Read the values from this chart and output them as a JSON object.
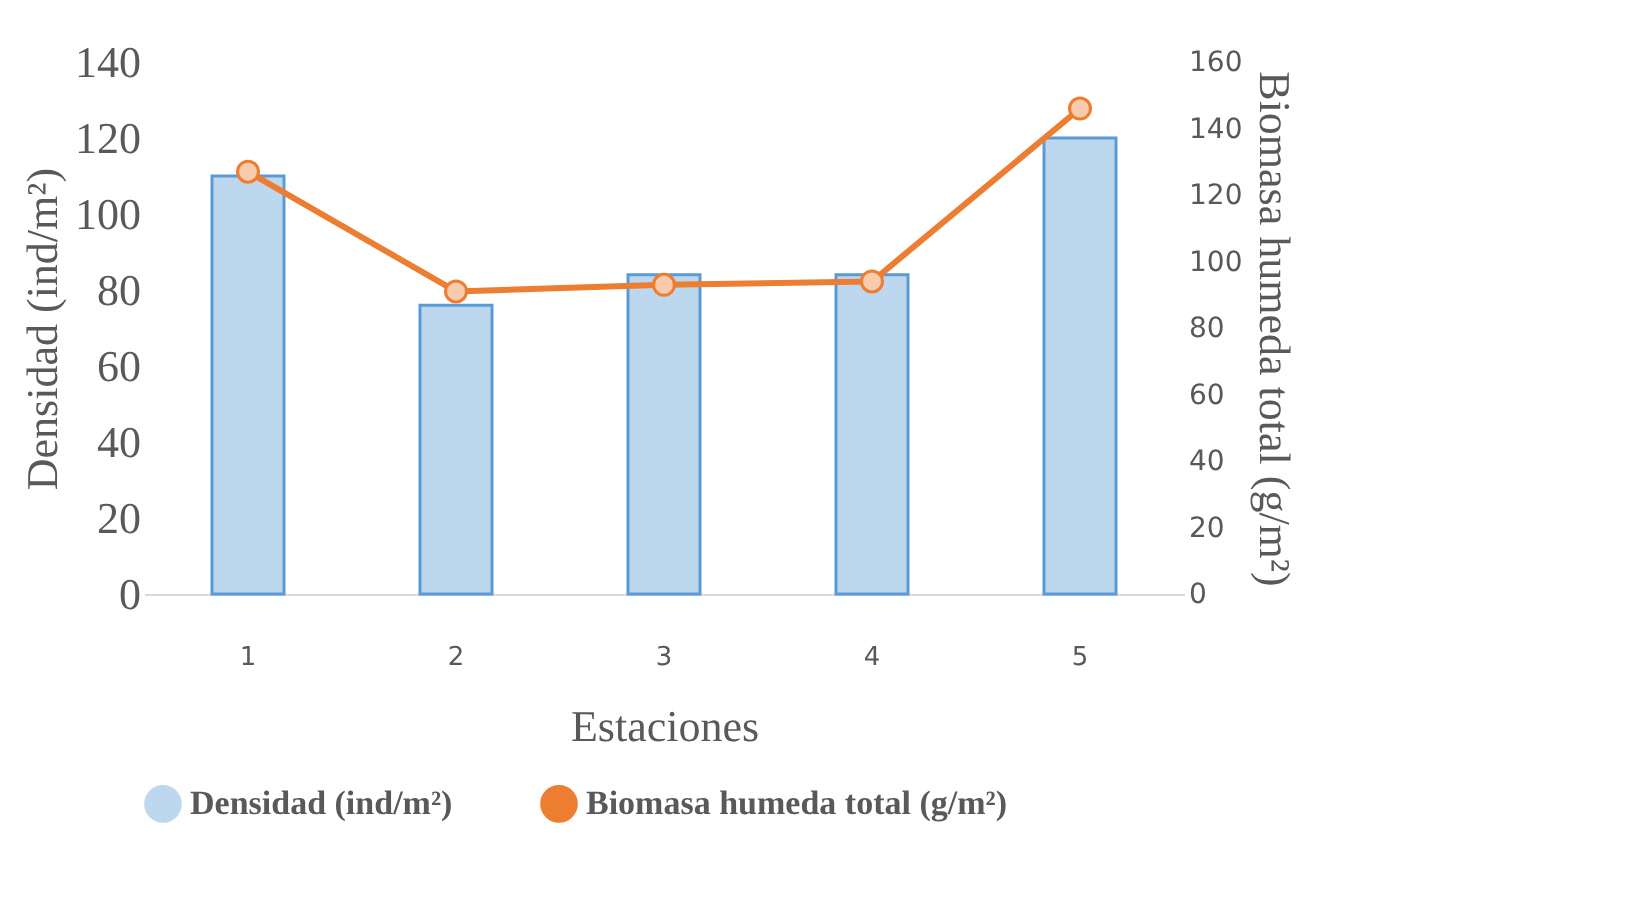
{
  "chart_data": {
    "type": "bar",
    "xlabel": "Estaciones",
    "ylabel": "Densidad (ind/m²)",
    "y2label": "Biomasa humeda total (g/m²)",
    "categories": [
      "1",
      "2",
      "3",
      "4",
      "5"
    ],
    "series": [
      {
        "name": "Densidad (ind/m²)",
        "color": "#bdd7ee",
        "values": [
          110,
          76,
          84,
          84,
          120
        ]
      },
      {
        "name": "Biomasa humeda total (g/m²)",
        "type": "line",
        "axis": "y2",
        "color": "#ed7d31",
        "values": [
          127,
          91,
          93,
          94,
          146
        ]
      }
    ],
    "ylim": [
      0,
      140
    ],
    "yticks": [
      0,
      20,
      40,
      60,
      80,
      100,
      120,
      140
    ],
    "y2lim": [
      0,
      160
    ],
    "y2ticks": [
      0,
      20,
      40,
      60,
      80,
      100,
      120,
      140,
      160
    ],
    "grid": false,
    "legend": "bottom",
    "marker": "circle",
    "line_style": "solid"
  }
}
